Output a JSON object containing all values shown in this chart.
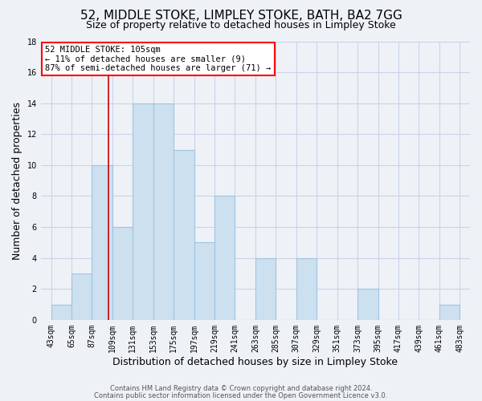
{
  "title": "52, MIDDLE STOKE, LIMPLEY STOKE, BATH, BA2 7GG",
  "subtitle": "Size of property relative to detached houses in Limpley Stoke",
  "xlabel": "Distribution of detached houses by size in Limpley Stoke",
  "ylabel": "Number of detached properties",
  "bins": [
    43,
    65,
    87,
    109,
    131,
    153,
    175,
    197,
    219,
    241,
    263,
    285,
    307,
    329,
    351,
    373,
    395,
    417,
    439,
    461,
    483
  ],
  "counts": [
    1,
    3,
    10,
    6,
    14,
    14,
    11,
    5,
    8,
    0,
    4,
    0,
    4,
    0,
    0,
    2,
    0,
    0,
    0,
    1
  ],
  "bar_color": "#cce0f0",
  "bar_edge_color": "#a0c4e0",
  "vline_x": 105,
  "vline_color": "#cc0000",
  "ylim": [
    0,
    18
  ],
  "yticks": [
    0,
    2,
    4,
    6,
    8,
    10,
    12,
    14,
    16,
    18
  ],
  "annotation_title": "52 MIDDLE STOKE: 105sqm",
  "annotation_line1": "← 11% of detached houses are smaller (9)",
  "annotation_line2": "87% of semi-detached houses are larger (71) →",
  "footer_line1": "Contains HM Land Registry data © Crown copyright and database right 2024.",
  "footer_line2": "Contains public sector information licensed under the Open Government Licence v3.0.",
  "background_color": "#eef2f7",
  "plot_bg_color": "#eef2f7",
  "grid_color": "#c8d4e8",
  "title_fontsize": 11,
  "subtitle_fontsize": 9,
  "axis_label_fontsize": 9,
  "tick_fontsize": 7,
  "ylabel_fontsize": 9
}
